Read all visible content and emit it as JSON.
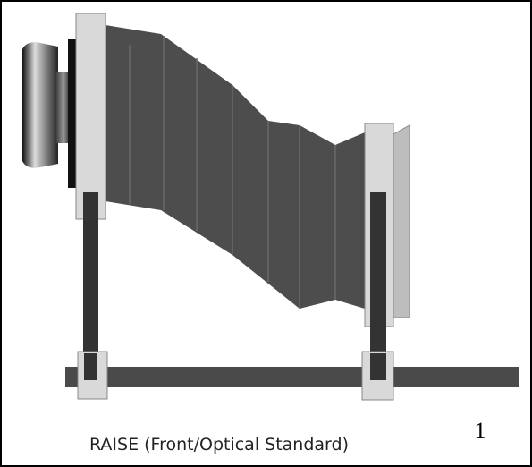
{
  "figure": {
    "caption": "RAISE (Front/Optical Standard)",
    "number": "1"
  }
}
